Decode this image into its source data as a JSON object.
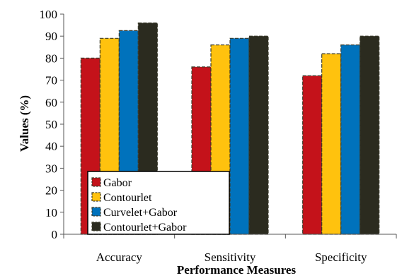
{
  "chart_data": {
    "type": "bar",
    "title": "",
    "xlabel": "Performance Measures",
    "ylabel": "Values (%)",
    "ylim": [
      0,
      100
    ],
    "yticks": [
      0,
      10,
      20,
      30,
      40,
      50,
      60,
      70,
      80,
      90,
      100
    ],
    "categories": [
      "Accuracy",
      "Sensitivity",
      "Specificity"
    ],
    "series": [
      {
        "name": "Gabor",
        "values": [
          80,
          76,
          72
        ],
        "color": "#c4121a"
      },
      {
        "name": "Contourlet",
        "values": [
          89,
          86,
          82
        ],
        "color": "#ffc20e"
      },
      {
        "name": "Curvelet+Gabor",
        "values": [
          92.5,
          89,
          86
        ],
        "color": "#0072bc"
      },
      {
        "name": "Contourlet+Gabor",
        "values": [
          96,
          90,
          90
        ],
        "color": "#2b2b1f"
      }
    ],
    "legend_position": "bottom-left",
    "grid": false
  }
}
